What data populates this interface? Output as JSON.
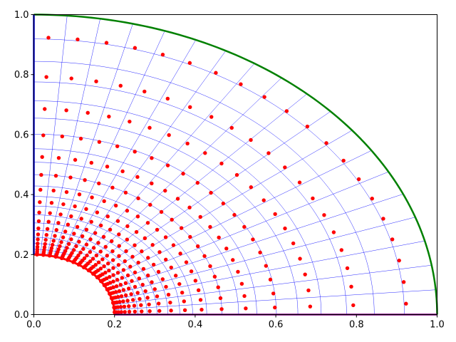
{
  "chart_data": {
    "type": "scatter",
    "title": "",
    "xlabel": "",
    "ylabel": "",
    "xlim": [
      0,
      1
    ],
    "ylim": [
      0,
      1
    ],
    "xticks": [
      "0.0",
      "0.2",
      "0.4",
      "0.6",
      "0.8",
      "1.0"
    ],
    "yticks": [
      "0.0",
      "0.2",
      "0.4",
      "0.6",
      "0.8",
      "1.0"
    ],
    "grid": false,
    "legend": "none",
    "annulus": {
      "inner_radius": 0.2,
      "outer_radius": 1.0,
      "theta_range_deg": [
        0,
        90
      ],
      "radial_levels": 20,
      "angular_levels": 20,
      "mesh_spacing": "geometric",
      "point_spacing": "geometric_stretched"
    },
    "series": [
      {
        "role": "mesh-grid",
        "color": "#0000ff"
      },
      {
        "role": "collocation-points",
        "color": "#ff0000"
      },
      {
        "role": "inner-boundary-arc",
        "color": "#ff0000",
        "radius": 0.2
      },
      {
        "role": "outer-boundary-arc",
        "color": "#008000",
        "radius": 1.0
      },
      {
        "role": "axis-boundary-lines",
        "color": "#0000ff"
      },
      {
        "role": "bottom-boundary-line",
        "color": "#800080"
      }
    ]
  }
}
